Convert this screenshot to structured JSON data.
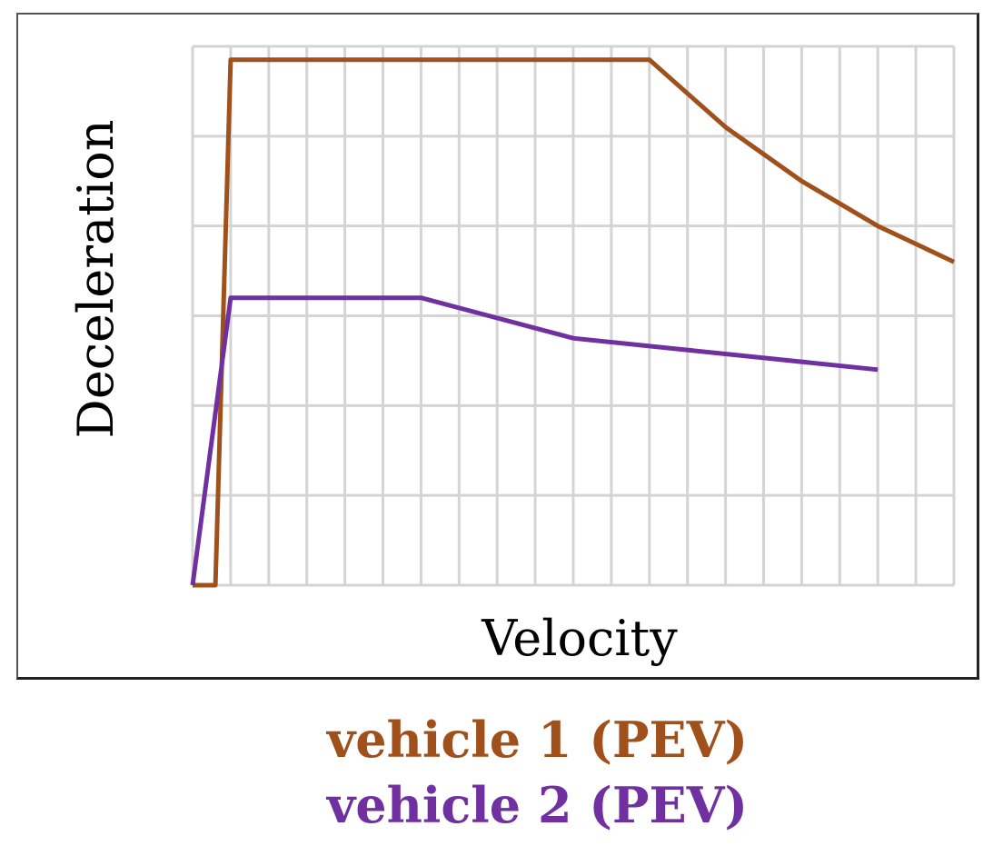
{
  "chart_data": {
    "type": "line",
    "title": "",
    "xlabel": "Velocity",
    "ylabel": "Deceleration",
    "xlim": [
      0,
      20
    ],
    "ylim": [
      0,
      6
    ],
    "grid": true,
    "series": [
      {
        "name": "vehicle 1 (PEV)",
        "color": "#a0501a",
        "x": [
          0,
          0.6,
          1.0,
          12.0,
          14.0,
          16.0,
          18.0,
          20.0
        ],
        "y": [
          0,
          0,
          5.85,
          5.85,
          5.1,
          4.5,
          4.0,
          3.6
        ]
      },
      {
        "name": "vehicle 2 (PEV)",
        "color": "#7030a0",
        "x": [
          0,
          1.0,
          6.0,
          10.0,
          18.0
        ],
        "y": [
          0,
          3.2,
          3.2,
          2.75,
          2.4
        ]
      }
    ]
  },
  "legend": {
    "items": [
      {
        "label": "vehicle 1 (PEV)",
        "color": "#a0501a"
      },
      {
        "label": "vehicle 2 (PEV)",
        "color": "#7030a0"
      }
    ]
  }
}
